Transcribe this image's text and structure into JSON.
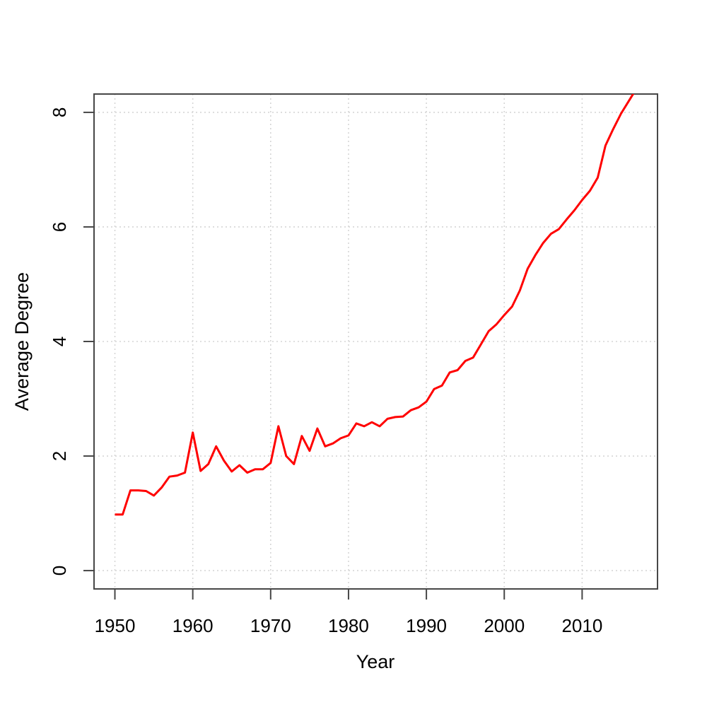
{
  "page": {
    "background": "#ffffff"
  },
  "chart_data": {
    "type": "line",
    "title": "",
    "xlabel": "Year",
    "ylabel": "Average Degree",
    "legend": "none",
    "grid": "dotted",
    "series": [
      {
        "name": "average-degree",
        "color": "#ff0000",
        "x": [
          1950,
          1951,
          1952,
          1953,
          1954,
          1955,
          1956,
          1957,
          1958,
          1959,
          1960,
          1961,
          1962,
          1963,
          1964,
          1965,
          1966,
          1967,
          1968,
          1969,
          1970,
          1971,
          1972,
          1973,
          1974,
          1975,
          1976,
          1977,
          1978,
          1979,
          1980,
          1981,
          1982,
          1983,
          1984,
          1985,
          1986,
          1987,
          1988,
          1989,
          1990,
          1991,
          1992,
          1993,
          1994,
          1995,
          1996,
          1997,
          1998,
          1999,
          2000,
          2001,
          2002,
          2003,
          2004,
          2005,
          2006,
          2007,
          2008,
          2009,
          2010,
          2011,
          2012,
          2013,
          2014,
          2015,
          2016,
          2017
        ],
        "values": [
          0.98,
          0.98,
          1.4,
          1.4,
          1.39,
          1.31,
          1.45,
          1.64,
          1.66,
          1.71,
          2.41,
          1.74,
          1.86,
          2.17,
          1.92,
          1.73,
          1.84,
          1.71,
          1.77,
          1.77,
          1.88,
          2.52,
          2.0,
          1.86,
          2.35,
          2.09,
          2.48,
          2.17,
          2.22,
          2.31,
          2.36,
          2.57,
          2.52,
          2.59,
          2.52,
          2.65,
          2.68,
          2.69,
          2.8,
          2.85,
          2.95,
          3.17,
          3.23,
          3.46,
          3.5,
          3.66,
          3.72,
          3.95,
          4.18,
          4.3,
          4.46,
          4.61,
          4.89,
          5.27,
          5.51,
          5.72,
          5.88,
          5.96,
          6.13,
          6.29,
          6.47,
          6.63,
          6.86,
          7.42,
          7.71,
          7.98,
          8.2,
          8.42
        ]
      }
    ],
    "x_ticks": [
      1950,
      1960,
      1970,
      1980,
      1990,
      2000,
      2010
    ],
    "y_ticks": [
      0,
      2,
      4,
      6,
      8
    ],
    "xlim": [
      1947.32,
      2019.68
    ],
    "ylim": [
      -0.32,
      8.32
    ],
    "styles": {
      "grid_color": "#d6d6d6",
      "box_color": "#474747",
      "tick_color": "#474747",
      "text_color": "#000000"
    }
  }
}
